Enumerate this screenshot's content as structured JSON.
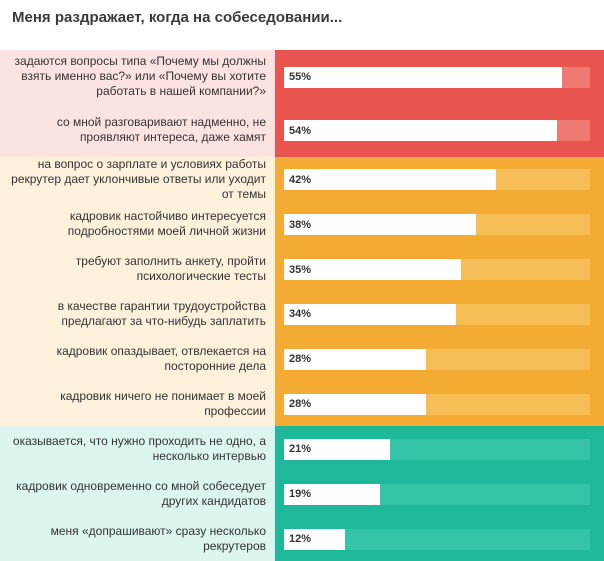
{
  "chart_data": {
    "type": "bar",
    "orientation": "horizontal",
    "title": "Меня раздражает, когда на собеседовании...",
    "xlim": [
      0,
      100
    ],
    "groups": [
      {
        "name": "top",
        "label_bg": "#fde2e2",
        "bar_bg": "#e8554e",
        "track_bg": "#ef7a72",
        "items": [
          {
            "label": "задаются вопросы типа «Почему мы должны взять именно вас?» или «Почему вы хотите работать в нашей компании?»",
            "value": 55,
            "value_label": "55%"
          },
          {
            "label": "со мной разговаривают надменно, не проявляют интереса, даже хамят",
            "value": 54,
            "value_label": "54%"
          }
        ]
      },
      {
        "name": "middle",
        "label_bg": "#fdf1dc",
        "bar_bg": "#f4ab33",
        "track_bg": "#f7be58",
        "items": [
          {
            "label": "на вопрос о зарплате и условиях работы рекрутер дает уклончивые ответы или уходит от темы",
            "value": 42,
            "value_label": "42%"
          },
          {
            "label": "кадровик настойчиво интересуется подробностями моей личной жизни",
            "value": 38,
            "value_label": "38%"
          },
          {
            "label": "требуют заполнить анкету, пройти психологические тесты",
            "value": 35,
            "value_label": "35%"
          },
          {
            "label": "в качестве гарантии трудоустройства предлагают за что-нибудь заплатить",
            "value": 34,
            "value_label": "34%"
          },
          {
            "label": "кадровик опаздывает, отвлекается на посторонние дела",
            "value": 28,
            "value_label": "28%"
          },
          {
            "label": "кадровик ничего не понимает в моей профессии",
            "value": 28,
            "value_label": "28%"
          }
        ]
      },
      {
        "name": "bottom",
        "label_bg": "#dcf5f0",
        "bar_bg": "#1fb89a",
        "track_bg": "#34c5a8",
        "items": [
          {
            "label": "оказывается, что нужно проходить не одно, а несколько интервью",
            "value": 21,
            "value_label": "21%"
          },
          {
            "label": "кадровик одновременно со мной собеседует других кандидатов",
            "value": 19,
            "value_label": "19%"
          },
          {
            "label": "меня «допрашивают» сразу несколько рекрутеров",
            "value": 12,
            "value_label": "12%"
          }
        ]
      }
    ]
  }
}
